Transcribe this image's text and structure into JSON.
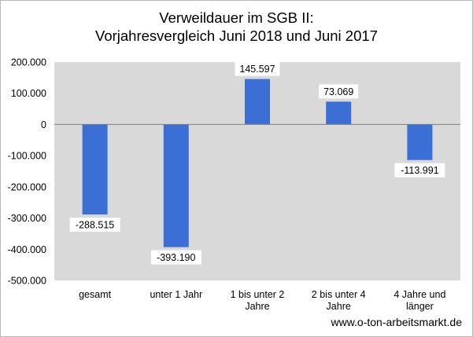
{
  "chart_data": {
    "type": "bar",
    "title_line1": "Verweildauer im SGB II:",
    "title_line2": "Vorjahresvergleich Juni 2018 und Juni 2017",
    "categories": [
      [
        "gesamt"
      ],
      [
        "unter 1 Jahr"
      ],
      [
        "1 bis unter 2",
        "Jahre"
      ],
      [
        "2 bis unter 4",
        "Jahre"
      ],
      [
        "4 Jahre und",
        "länger"
      ]
    ],
    "values": [
      -288515,
      -393190,
      145597,
      73069,
      -113991
    ],
    "value_labels": [
      "-288.515",
      "-393.190",
      "145.597",
      "73.069",
      "-113.991"
    ],
    "ylim": [
      -500000,
      200000
    ],
    "yticks": [
      200000,
      100000,
      0,
      -100000,
      -200000,
      -300000,
      -400000,
      -500000
    ],
    "ytick_labels": [
      "200.000",
      "100.000",
      "0",
      "-100.000",
      "-200.000",
      "-300.000",
      "-400.000",
      "-500.000"
    ],
    "bar_color": "#3b6fd6",
    "plot_background": "#d9d9d9",
    "grid": false,
    "legend": "none"
  },
  "source": "www.o-ton-arbeitsmarkt.de"
}
